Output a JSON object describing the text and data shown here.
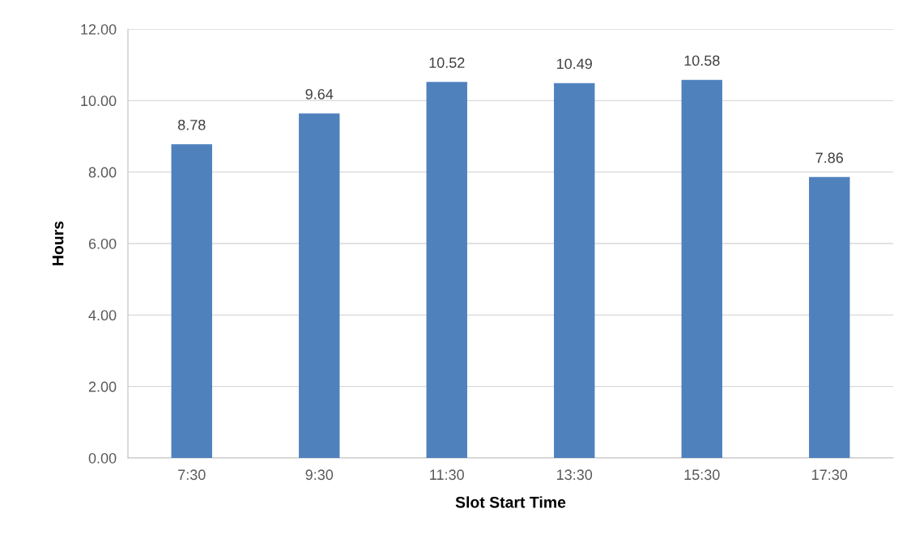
{
  "chart_data": {
    "type": "bar",
    "xlabel": "Slot Start Time",
    "ylabel": "Hours",
    "categories": [
      "7:30",
      "9:30",
      "11:30",
      "13:30",
      "15:30",
      "17:30"
    ],
    "values": [
      8.78,
      9.64,
      10.52,
      10.49,
      10.58,
      7.86
    ],
    "color": "#4f81bd",
    "ylim": [
      0,
      12
    ],
    "yticks": [
      {
        "value": 0,
        "label": "0.00"
      },
      {
        "value": 2,
        "label": "2.00"
      },
      {
        "value": 4,
        "label": "4.00"
      },
      {
        "value": 6,
        "label": "6.00"
      },
      {
        "value": 8,
        "label": "8.00"
      },
      {
        "value": 10,
        "label": "10.00"
      },
      {
        "value": 12,
        "label": "12.00"
      }
    ],
    "grid": "y",
    "data_labels": true
  }
}
